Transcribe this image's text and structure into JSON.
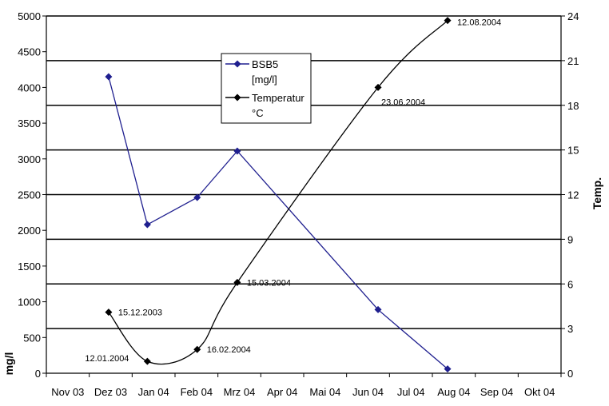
{
  "chart_data": {
    "type": "line",
    "x_categories": [
      "Nov 03",
      "Dez 03",
      "Jan 04",
      "Feb 04",
      "Mrz 04",
      "Apr 04",
      "Mai 04",
      "Jun 04",
      "Jul 04",
      "Aug 04",
      "Sep 04",
      "Okt 04"
    ],
    "y_left": {
      "label": "mg/l",
      "min": 0,
      "max": 5000,
      "step": 500
    },
    "y_right": {
      "label": "Temp.",
      "min": 0,
      "max": 24,
      "step": 3
    },
    "grid": "horizontal",
    "legend_position": "top-center",
    "series": [
      {
        "name": "BSB5 [mg/l]",
        "axis": "left",
        "color": "#1f1f8f",
        "marker": "diamond",
        "smooth": false,
        "points": [
          {
            "x": "2003-12-15",
            "y": 4150
          },
          {
            "x": "2004-01-12",
            "y": 2080
          },
          {
            "x": "2004-02-16",
            "y": 2460
          },
          {
            "x": "2004-03-15",
            "y": 3110
          },
          {
            "x": "2004-06-23",
            "y": 890
          },
          {
            "x": "2004-08-12",
            "y": 60
          }
        ]
      },
      {
        "name": "Temperatur °C",
        "axis": "right",
        "color": "#000000",
        "marker": "diamond",
        "smooth": true,
        "points": [
          {
            "x": "2003-12-15",
            "y": 4.1
          },
          {
            "x": "2004-01-12",
            "y": 0.8
          },
          {
            "x": "2004-02-16",
            "y": 1.6
          },
          {
            "x": "2004-03-15",
            "y": 6.1
          },
          {
            "x": "2004-06-23",
            "y": 19.2
          },
          {
            "x": "2004-08-12",
            "y": 23.7
          }
        ]
      }
    ],
    "annotations": [
      "15.12.2003",
      "12.01.2004",
      "16.02.2004",
      "15.03.2004",
      "23.06.2004",
      "12.08.2004"
    ],
    "legend": {
      "entries": [
        {
          "lines": [
            "BSB5",
            "[mg/l]"
          ],
          "color": "#1f1f8f"
        },
        {
          "lines": [
            "Temperatur",
            "°C"
          ],
          "color": "#000000"
        }
      ]
    }
  }
}
